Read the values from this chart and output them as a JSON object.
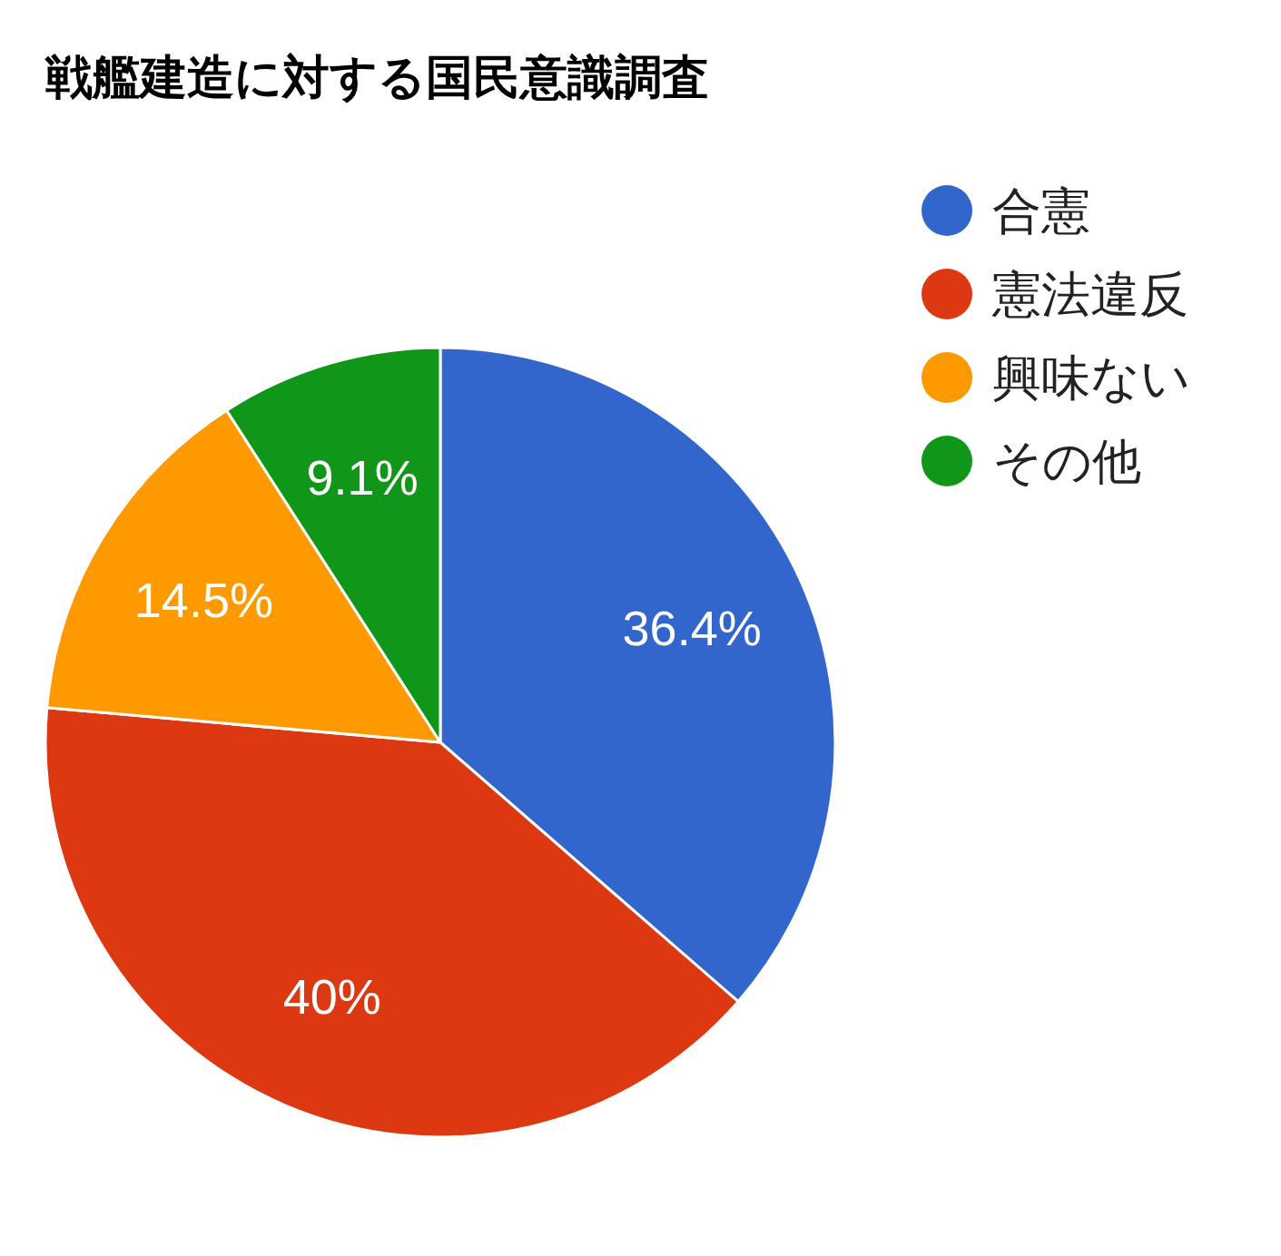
{
  "chart_data": {
    "type": "pie",
    "title": "戦艦建造に対する国民意識調査",
    "categories": [
      "合憲",
      "憲法違反",
      "興味ない",
      "その他"
    ],
    "values": [
      36.4,
      40,
      14.5,
      9.1
    ],
    "colors": [
      "#3366cc",
      "#dc3912",
      "#ff9900",
      "#109618"
    ],
    "value_labels": [
      "36.4%",
      "40%",
      "14.5%",
      "9.1%"
    ],
    "legend": "right"
  }
}
